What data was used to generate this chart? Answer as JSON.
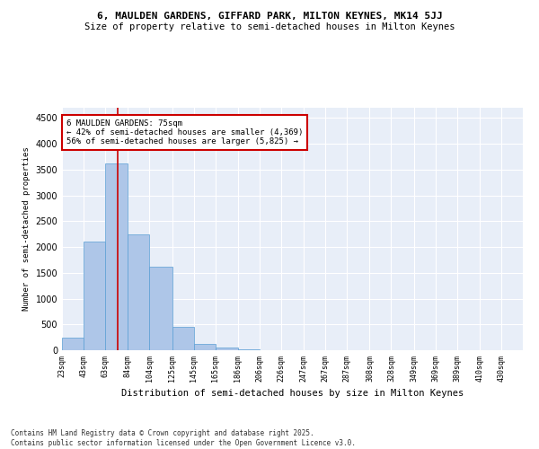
{
  "title1": "6, MAULDEN GARDENS, GIFFARD PARK, MILTON KEYNES, MK14 5JJ",
  "title2": "Size of property relative to semi-detached houses in Milton Keynes",
  "xlabel": "Distribution of semi-detached houses by size in Milton Keynes",
  "ylabel": "Number of semi-detached properties",
  "annotation_title": "6 MAULDEN GARDENS: 75sqm",
  "annotation_line1": "← 42% of semi-detached houses are smaller (4,369)",
  "annotation_line2": "56% of semi-detached houses are larger (5,825) →",
  "footer1": "Contains HM Land Registry data © Crown copyright and database right 2025.",
  "footer2": "Contains public sector information licensed under the Open Government Licence v3.0.",
  "property_size": 75,
  "bar_left_edges": [
    23,
    43,
    63,
    84,
    104,
    125,
    145,
    165,
    186,
    206,
    226,
    247,
    267,
    287,
    308,
    328,
    349,
    369,
    389,
    410
  ],
  "bar_widths": [
    20,
    20,
    21,
    20,
    21,
    20,
    20,
    21,
    20,
    20,
    21,
    20,
    20,
    21,
    20,
    21,
    20,
    20,
    21,
    20
  ],
  "bar_heights": [
    250,
    2100,
    3620,
    2250,
    1620,
    450,
    115,
    50,
    10,
    5,
    2,
    1,
    1,
    0,
    0,
    0,
    0,
    0,
    0,
    0
  ],
  "bar_color": "#aec6e8",
  "bar_edge_color": "#5a9fd4",
  "red_line_color": "#cc0000",
  "annotation_box_color": "#cc0000",
  "background_color": "#e8eef8",
  "grid_color": "#ffffff",
  "ylim": [
    0,
    4700
  ],
  "yticks": [
    0,
    500,
    1000,
    1500,
    2000,
    2500,
    3000,
    3500,
    4000,
    4500
  ],
  "x_labels": [
    "23sqm",
    "43sqm",
    "63sqm",
    "84sqm",
    "104sqm",
    "125sqm",
    "145sqm",
    "165sqm",
    "186sqm",
    "206sqm",
    "226sqm",
    "247sqm",
    "267sqm",
    "287sqm",
    "308sqm",
    "328sqm",
    "349sqm",
    "369sqm",
    "389sqm",
    "410sqm",
    "430sqm"
  ],
  "tick_positions": [
    23,
    43,
    63,
    84,
    104,
    125,
    145,
    165,
    186,
    206,
    226,
    247,
    267,
    287,
    308,
    328,
    349,
    369,
    389,
    410,
    430
  ]
}
